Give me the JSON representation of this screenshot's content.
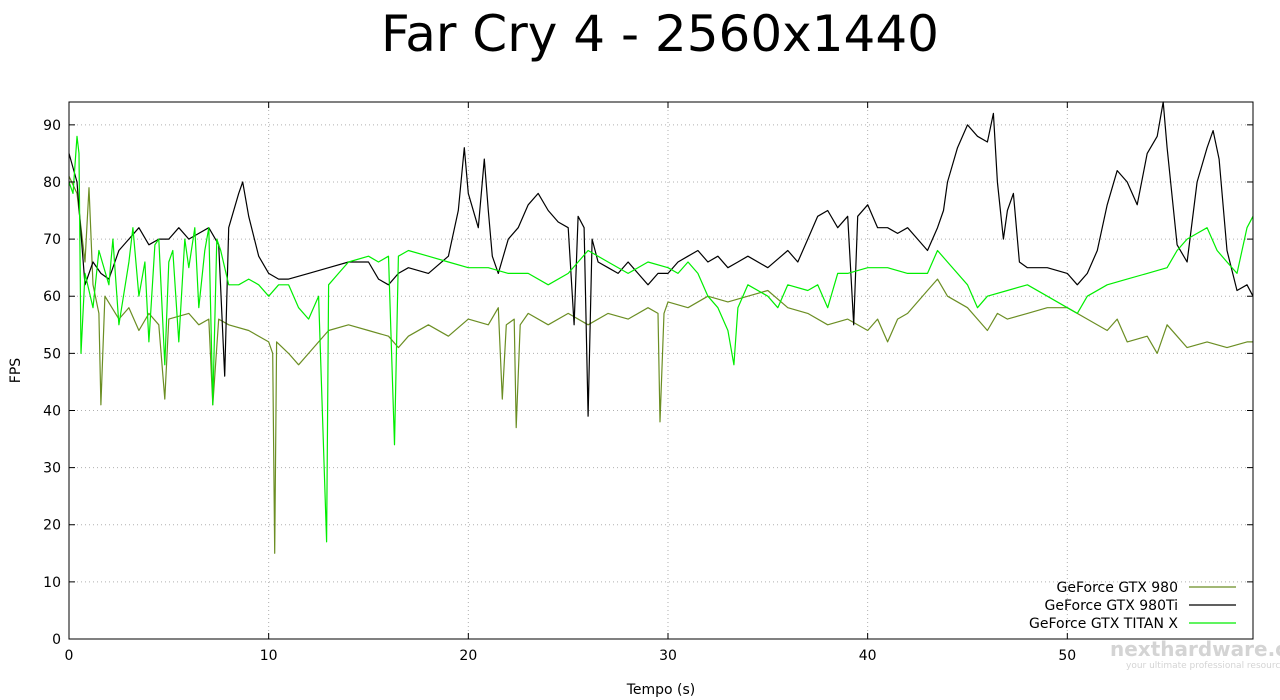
{
  "chart_data": {
    "type": "line",
    "title": "Far Cry 4 - 2560x1440",
    "xlabel": "Tempo (s)",
    "ylabel": "FPS",
    "xlim": [
      0,
      59.3
    ],
    "ylim": [
      0,
      94
    ],
    "xticks": [
      0,
      10,
      20,
      30,
      40,
      50
    ],
    "yticks": [
      0,
      10,
      20,
      30,
      40,
      50,
      60,
      70,
      80,
      90
    ],
    "grid": true,
    "legend_position": "bottom-right",
    "series": [
      {
        "name": "GeForce GTX 980",
        "color": "#6b8e23",
        "points": [
          [
            0,
            81
          ],
          [
            0.4,
            78
          ],
          [
            0.8,
            66
          ],
          [
            1.0,
            79
          ],
          [
            1.2,
            62
          ],
          [
            1.5,
            57
          ],
          [
            1.6,
            41
          ],
          [
            1.8,
            60
          ],
          [
            2.5,
            56
          ],
          [
            3,
            58
          ],
          [
            3.5,
            54
          ],
          [
            4,
            57
          ],
          [
            4.5,
            55
          ],
          [
            4.8,
            42
          ],
          [
            5,
            56
          ],
          [
            6,
            57
          ],
          [
            6.5,
            55
          ],
          [
            7,
            56
          ],
          [
            7.2,
            41
          ],
          [
            7.5,
            56
          ],
          [
            8,
            55
          ],
          [
            9,
            54
          ],
          [
            10,
            52
          ],
          [
            10.2,
            50
          ],
          [
            10.3,
            15
          ],
          [
            10.4,
            52
          ],
          [
            11,
            50
          ],
          [
            11.5,
            48
          ],
          [
            12,
            50
          ],
          [
            12.5,
            52
          ],
          [
            13,
            54
          ],
          [
            14,
            55
          ],
          [
            15,
            54
          ],
          [
            16,
            53
          ],
          [
            16.5,
            51
          ],
          [
            17,
            53
          ],
          [
            18,
            55
          ],
          [
            19,
            53
          ],
          [
            20,
            56
          ],
          [
            21,
            55
          ],
          [
            21.5,
            58
          ],
          [
            21.7,
            42
          ],
          [
            21.9,
            55
          ],
          [
            22.3,
            56
          ],
          [
            22.4,
            37
          ],
          [
            22.6,
            55
          ],
          [
            23,
            57
          ],
          [
            24,
            55
          ],
          [
            25,
            57
          ],
          [
            26,
            55
          ],
          [
            27,
            57
          ],
          [
            28,
            56
          ],
          [
            29,
            58
          ],
          [
            29.5,
            57
          ],
          [
            29.6,
            38
          ],
          [
            29.8,
            57
          ],
          [
            30,
            59
          ],
          [
            31,
            58
          ],
          [
            32,
            60
          ],
          [
            33,
            59
          ],
          [
            34,
            60
          ],
          [
            35,
            61
          ],
          [
            36,
            58
          ],
          [
            37,
            57
          ],
          [
            38,
            55
          ],
          [
            39,
            56
          ],
          [
            40,
            54
          ],
          [
            40.5,
            56
          ],
          [
            41,
            52
          ],
          [
            41.5,
            56
          ],
          [
            42,
            57
          ],
          [
            43,
            61
          ],
          [
            43.5,
            63
          ],
          [
            44,
            60
          ],
          [
            45,
            58
          ],
          [
            45.5,
            56
          ],
          [
            46,
            54
          ],
          [
            46.5,
            57
          ],
          [
            47,
            56
          ],
          [
            48,
            57
          ],
          [
            49,
            58
          ],
          [
            50,
            58
          ],
          [
            51,
            56
          ],
          [
            52,
            54
          ],
          [
            52.5,
            56
          ],
          [
            53,
            52
          ],
          [
            54,
            53
          ],
          [
            54.5,
            50
          ],
          [
            55,
            55
          ],
          [
            55.5,
            53
          ],
          [
            56,
            51
          ],
          [
            57,
            52
          ],
          [
            58,
            51
          ],
          [
            59,
            52
          ],
          [
            59.3,
            52
          ]
        ]
      },
      {
        "name": "GeForce GTX 980Ti",
        "color": "#000000",
        "points": [
          [
            0,
            85
          ],
          [
            0.4,
            80
          ],
          [
            0.8,
            62
          ],
          [
            1.2,
            66
          ],
          [
            1.6,
            64
          ],
          [
            2,
            63
          ],
          [
            2.5,
            68
          ],
          [
            3,
            70
          ],
          [
            3.5,
            72
          ],
          [
            4,
            69
          ],
          [
            4.5,
            70
          ],
          [
            5,
            70
          ],
          [
            5.5,
            72
          ],
          [
            6,
            70
          ],
          [
            6.5,
            71
          ],
          [
            7,
            72
          ],
          [
            7.5,
            69
          ],
          [
            7.8,
            46
          ],
          [
            8,
            72
          ],
          [
            8.5,
            78
          ],
          [
            8.7,
            80
          ],
          [
            9,
            74
          ],
          [
            9.5,
            67
          ],
          [
            10,
            64
          ],
          [
            10.5,
            63
          ],
          [
            11,
            63
          ],
          [
            12,
            64
          ],
          [
            13,
            65
          ],
          [
            14,
            66
          ],
          [
            15,
            66
          ],
          [
            15.5,
            63
          ],
          [
            16,
            62
          ],
          [
            16.5,
            64
          ],
          [
            17,
            65
          ],
          [
            18,
            64
          ],
          [
            19,
            67
          ],
          [
            19.5,
            75
          ],
          [
            19.8,
            86
          ],
          [
            20,
            78
          ],
          [
            20.5,
            72
          ],
          [
            20.8,
            84
          ],
          [
            21,
            75
          ],
          [
            21.2,
            67
          ],
          [
            21.5,
            64
          ],
          [
            22,
            70
          ],
          [
            22.5,
            72
          ],
          [
            23,
            76
          ],
          [
            23.5,
            78
          ],
          [
            24,
            75
          ],
          [
            24.5,
            73
          ],
          [
            25,
            72
          ],
          [
            25.3,
            55
          ],
          [
            25.5,
            74
          ],
          [
            25.8,
            72
          ],
          [
            26,
            39
          ],
          [
            26.2,
            70
          ],
          [
            26.5,
            66
          ],
          [
            27,
            65
          ],
          [
            27.5,
            64
          ],
          [
            28,
            66
          ],
          [
            28.5,
            64
          ],
          [
            29,
            62
          ],
          [
            29.5,
            64
          ],
          [
            30,
            64
          ],
          [
            30.5,
            66
          ],
          [
            31,
            67
          ],
          [
            31.5,
            68
          ],
          [
            32,
            66
          ],
          [
            32.5,
            67
          ],
          [
            33,
            65
          ],
          [
            33.5,
            66
          ],
          [
            34,
            67
          ],
          [
            35,
            65
          ],
          [
            36,
            68
          ],
          [
            36.5,
            66
          ],
          [
            37,
            70
          ],
          [
            37.5,
            74
          ],
          [
            38,
            75
          ],
          [
            38.5,
            72
          ],
          [
            39,
            74
          ],
          [
            39.3,
            55
          ],
          [
            39.5,
            74
          ],
          [
            40,
            76
          ],
          [
            40.5,
            72
          ],
          [
            41,
            72
          ],
          [
            41.5,
            71
          ],
          [
            42,
            72
          ],
          [
            42.5,
            70
          ],
          [
            43,
            68
          ],
          [
            43.5,
            72
          ],
          [
            43.8,
            75
          ],
          [
            44,
            80
          ],
          [
            44.5,
            86
          ],
          [
            45,
            90
          ],
          [
            45.5,
            88
          ],
          [
            46,
            87
          ],
          [
            46.3,
            92
          ],
          [
            46.5,
            80
          ],
          [
            46.8,
            70
          ],
          [
            47,
            75
          ],
          [
            47.3,
            78
          ],
          [
            47.6,
            66
          ],
          [
            48,
            65
          ],
          [
            49,
            65
          ],
          [
            50,
            64
          ],
          [
            50.5,
            62
          ],
          [
            51,
            64
          ],
          [
            51.5,
            68
          ],
          [
            52,
            76
          ],
          [
            52.5,
            82
          ],
          [
            53,
            80
          ],
          [
            53.5,
            76
          ],
          [
            54,
            85
          ],
          [
            54.5,
            88
          ],
          [
            54.8,
            94
          ],
          [
            55,
            86
          ],
          [
            55.5,
            69
          ],
          [
            56,
            66
          ],
          [
            56.5,
            80
          ],
          [
            57,
            86
          ],
          [
            57.3,
            89
          ],
          [
            57.6,
            84
          ],
          [
            58,
            68
          ],
          [
            58.5,
            61
          ],
          [
            59,
            62
          ],
          [
            59.3,
            60
          ]
        ]
      },
      {
        "name": "GeForce GTX TITAN X",
        "color": "#00ee00",
        "points": [
          [
            0,
            80
          ],
          [
            0.2,
            78
          ],
          [
            0.4,
            88
          ],
          [
            0.5,
            85
          ],
          [
            0.6,
            50
          ],
          [
            0.8,
            64
          ],
          [
            1.2,
            58
          ],
          [
            1.5,
            68
          ],
          [
            2,
            62
          ],
          [
            2.2,
            70
          ],
          [
            2.5,
            55
          ],
          [
            3,
            66
          ],
          [
            3.2,
            72
          ],
          [
            3.5,
            60
          ],
          [
            3.8,
            66
          ],
          [
            4,
            52
          ],
          [
            4.3,
            69
          ],
          [
            4.5,
            70
          ],
          [
            4.8,
            48
          ],
          [
            5,
            66
          ],
          [
            5.2,
            68
          ],
          [
            5.5,
            52
          ],
          [
            5.8,
            70
          ],
          [
            6,
            65
          ],
          [
            6.3,
            72
          ],
          [
            6.5,
            58
          ],
          [
            6.8,
            68
          ],
          [
            7,
            72
          ],
          [
            7.2,
            41
          ],
          [
            7.4,
            70
          ],
          [
            7.6,
            68
          ],
          [
            8,
            62
          ],
          [
            8.5,
            62
          ],
          [
            9,
            63
          ],
          [
            9.5,
            62
          ],
          [
            10,
            60
          ],
          [
            10.5,
            62
          ],
          [
            11,
            62
          ],
          [
            11.5,
            58
          ],
          [
            12,
            56
          ],
          [
            12.5,
            60
          ],
          [
            12.9,
            17
          ],
          [
            13,
            62
          ],
          [
            13.5,
            64
          ],
          [
            14,
            66
          ],
          [
            15,
            67
          ],
          [
            15.5,
            66
          ],
          [
            16,
            67
          ],
          [
            16.3,
            34
          ],
          [
            16.5,
            67
          ],
          [
            17,
            68
          ],
          [
            18,
            67
          ],
          [
            19,
            66
          ],
          [
            20,
            65
          ],
          [
            21,
            65
          ],
          [
            22,
            64
          ],
          [
            23,
            64
          ],
          [
            24,
            62
          ],
          [
            25,
            64
          ],
          [
            26,
            68
          ],
          [
            27,
            66
          ],
          [
            28,
            64
          ],
          [
            29,
            66
          ],
          [
            30,
            65
          ],
          [
            30.5,
            64
          ],
          [
            31,
            66
          ],
          [
            31.5,
            64
          ],
          [
            32,
            60
          ],
          [
            32.5,
            58
          ],
          [
            33,
            54
          ],
          [
            33.3,
            48
          ],
          [
            33.5,
            58
          ],
          [
            34,
            62
          ],
          [
            35,
            60
          ],
          [
            35.5,
            58
          ],
          [
            36,
            62
          ],
          [
            37,
            61
          ],
          [
            37.5,
            62
          ],
          [
            38,
            58
          ],
          [
            38.5,
            64
          ],
          [
            39,
            64
          ],
          [
            40,
            65
          ],
          [
            41,
            65
          ],
          [
            42,
            64
          ],
          [
            43,
            64
          ],
          [
            43.5,
            68
          ],
          [
            44,
            66
          ],
          [
            45,
            62
          ],
          [
            45.5,
            58
          ],
          [
            46,
            60
          ],
          [
            47,
            61
          ],
          [
            48,
            62
          ],
          [
            49,
            60
          ],
          [
            50,
            58
          ],
          [
            50.5,
            57
          ],
          [
            51,
            60
          ],
          [
            52,
            62
          ],
          [
            53,
            63
          ],
          [
            54,
            64
          ],
          [
            55,
            65
          ],
          [
            55.5,
            68
          ],
          [
            56,
            70
          ],
          [
            56.5,
            71
          ],
          [
            57,
            72
          ],
          [
            57.5,
            68
          ],
          [
            58,
            66
          ],
          [
            58.5,
            64
          ],
          [
            59,
            72
          ],
          [
            59.3,
            74
          ]
        ]
      }
    ]
  },
  "watermark": {
    "brand": "nexthardware.com",
    "tagline": "your ultimate professional resource"
  }
}
